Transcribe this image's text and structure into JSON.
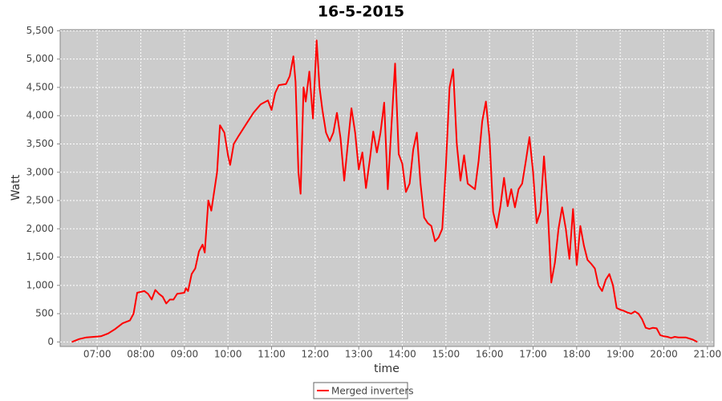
{
  "chart_data": {
    "type": "line",
    "title": "16-5-2015",
    "x_label": "time",
    "y_label": "Watt",
    "xlim": [
      "06:09",
      "21:09"
    ],
    "xticks": [
      "07:00",
      "08:00",
      "09:00",
      "10:00",
      "11:00",
      "12:00",
      "13:00",
      "14:00",
      "15:00",
      "16:00",
      "17:00",
      "18:00",
      "19:00",
      "20:00",
      "21:00"
    ],
    "ylim": [
      -80,
      5520
    ],
    "yticks": [
      0,
      500,
      {
        "value": 1000,
        "label": "1,000"
      },
      {
        "value": 1500,
        "label": "1,500"
      },
      {
        "value": 2000,
        "label": "2,000"
      },
      {
        "value": 2500,
        "label": "2,500"
      },
      {
        "value": 3000,
        "label": "3,000"
      },
      {
        "value": 3500,
        "label": "3,500"
      },
      {
        "value": 4000,
        "label": "4,000"
      },
      {
        "value": 4500,
        "label": "4,500"
      },
      {
        "value": 5000,
        "label": "5,000"
      },
      {
        "value": 5500,
        "label": "5,500"
      }
    ],
    "grid": true,
    "legend": "bottom",
    "x": [
      "06:25",
      "06:35",
      "06:45",
      "06:55",
      "07:05",
      "07:15",
      "07:25",
      "07:35",
      "07:45",
      "07:50",
      "07:55",
      "08:05",
      "08:10",
      "08:15",
      "08:20",
      "08:25",
      "08:30",
      "08:35",
      "08:40",
      "08:45",
      "08:50",
      "09:00",
      "09:02",
      "09:05",
      "09:10",
      "09:15",
      "09:20",
      "09:25",
      "09:28",
      "09:33",
      "09:37",
      "09:45",
      "09:49",
      "09:55",
      "10:00",
      "10:03",
      "10:08",
      "10:15",
      "10:25",
      "10:30",
      "10:35",
      "10:45",
      "10:55",
      "11:00",
      "11:05",
      "11:10",
      "11:20",
      "11:25",
      "11:30",
      "11:33",
      "11:37",
      "11:40",
      "11:44",
      "11:47",
      "11:52",
      "11:57",
      "12:02",
      "12:06",
      "12:10",
      "12:15",
      "12:20",
      "12:25",
      "12:30",
      "12:35",
      "12:40",
      "12:45",
      "12:50",
      "12:55",
      "13:00",
      "13:05",
      "13:10",
      "13:15",
      "13:20",
      "13:25",
      "13:30",
      "13:35",
      "13:40",
      "13:45",
      "13:50",
      "13:55",
      "14:00",
      "14:05",
      "14:10",
      "14:15",
      "14:20",
      "14:25",
      "14:30",
      "14:35",
      "14:40",
      "14:45",
      "14:50",
      "14:55",
      "15:00",
      "15:05",
      "15:10",
      "15:15",
      "15:20",
      "15:25",
      "15:30",
      "15:35",
      "15:40",
      "15:45",
      "15:50",
      "15:55",
      "16:00",
      "16:05",
      "16:10",
      "16:15",
      "16:20",
      "16:25",
      "16:30",
      "16:35",
      "16:40",
      "16:45",
      "16:50",
      "16:55",
      "17:00",
      "17:05",
      "17:10",
      "17:15",
      "17:20",
      "17:25",
      "17:30",
      "17:35",
      "17:40",
      "17:45",
      "17:50",
      "17:55",
      "18:00",
      "18:05",
      "18:10",
      "18:15",
      "18:20",
      "18:25",
      "18:30",
      "18:35",
      "18:40",
      "18:45",
      "18:50",
      "18:55",
      "19:00",
      "19:05",
      "19:10",
      "19:15",
      "19:20",
      "19:25",
      "19:30",
      "19:35",
      "19:40",
      "19:45",
      "19:50",
      "19:55",
      "20:00",
      "20:05",
      "20:10",
      "20:15",
      "20:20",
      "20:30",
      "20:40",
      "20:46"
    ],
    "series": [
      {
        "name": "Merged inverters",
        "color": "#ff0000",
        "values": [
          0,
          50,
          80,
          90,
          100,
          150,
          230,
          330,
          380,
          500,
          870,
          900,
          850,
          750,
          920,
          850,
          800,
          680,
          750,
          750,
          850,
          870,
          950,
          900,
          1200,
          1300,
          1600,
          1720,
          1580,
          2500,
          2320,
          3000,
          3830,
          3700,
          3300,
          3130,
          3500,
          3650,
          3850,
          3950,
          4050,
          4200,
          4270,
          4100,
          4400,
          4540,
          4560,
          4700,
          5050,
          4600,
          3000,
          2620,
          4500,
          4250,
          4780,
          3950,
          5330,
          4500,
          4100,
          3700,
          3550,
          3700,
          4050,
          3600,
          2850,
          3500,
          4130,
          3700,
          3050,
          3350,
          2720,
          3200,
          3720,
          3350,
          3700,
          4230,
          2700,
          3800,
          4920,
          3320,
          3150,
          2650,
          2800,
          3400,
          3700,
          2800,
          2200,
          2100,
          2050,
          1780,
          1850,
          2000,
          3100,
          4500,
          4820,
          3500,
          2850,
          3300,
          2800,
          2750,
          2700,
          3200,
          3900,
          4250,
          3600,
          2300,
          2020,
          2400,
          2900,
          2400,
          2700,
          2380,
          2700,
          2800,
          3200,
          3620,
          3000,
          2100,
          2300,
          3280,
          2400,
          1050,
          1400,
          2000,
          2380,
          2000,
          1470,
          2350,
          1360,
          2050,
          1700,
          1450,
          1380,
          1300,
          1000,
          900,
          1100,
          1200,
          1000,
          600,
          570,
          550,
          520,
          500,
          540,
          500,
          400,
          250,
          230,
          250,
          240,
          120,
          100,
          90,
          70,
          90,
          80,
          80,
          40,
          0
        ]
      }
    ]
  }
}
